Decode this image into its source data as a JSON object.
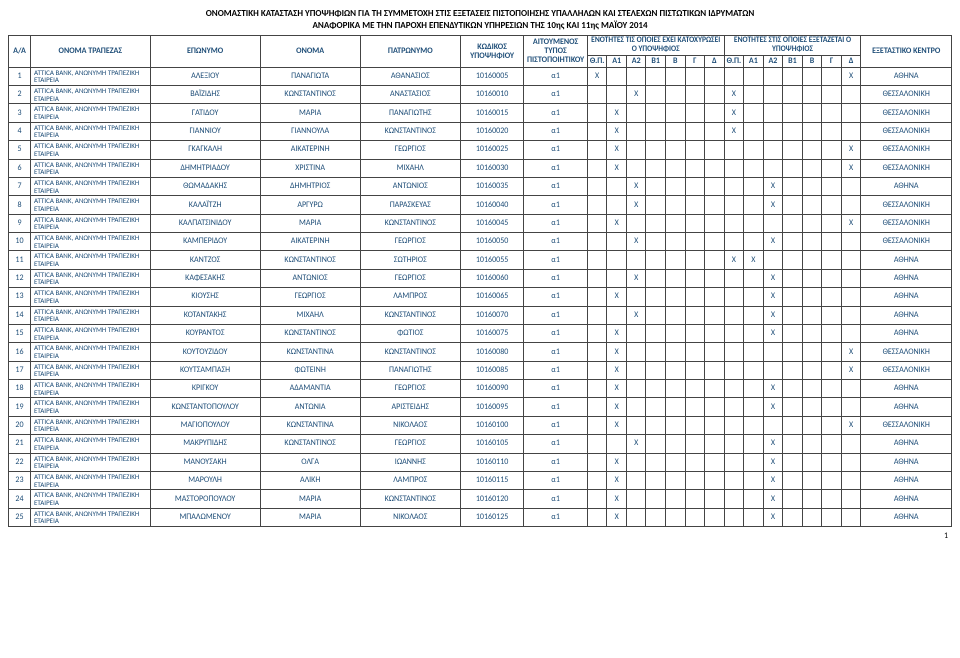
{
  "title": {
    "line1": "ΟΝΟΜΑΣΤΙΚΗ ΚΑΤΑΣΤΑΣΗ ΥΠΟΨΗΦΙΩΝ ΓΙΑ ΤΗ ΣΥΜΜΕΤΟΧΗ ΣΤΙΣ ΕΞΕΤΑΣΕΙΣ ΠΙΣΤΟΠΟΙΗΣΗΣ ΥΠΑΛΛΗΛΩΝ ΚΑΙ ΣΤΕΛΕΧΩΝ ΠΙΣΤΩΤΙΚΩΝ ΙΔΡΥΜΑΤΩΝ",
    "line2": "ΑΝΑΦΟΡΙΚΑ ΜΕ ΤΗΝ ΠΑΡΟΧΗ ΕΠΕΝΔΥΤΙΚΩΝ ΥΠΗΡΕΣΙΩΝ ΤΗΣ 10ης ΚΑΙ 11ης ΜΑΪΟΥ 2014"
  },
  "headers": {
    "aa": "Α/Α",
    "bank": "ΟΝΟΜΑ ΤΡΑΠΕΖΑΣ",
    "eponymo": "ΕΠΩΝΥΜΟ",
    "onoma": "ΟΝΟΜΑ",
    "patronymo": "ΠΑΤΡΩΝΥΜΟ",
    "kodikos": "ΚΩΔΙΚΟΣ ΥΠΟΨΗΦΙΟΥ",
    "typos": "ΑΙΤΟΥΜΕΝΟΣ ΤΥΠΟΣ ΠΙΣΤΟΠΟΙΗΤΙΚΟΥ",
    "group1": "ΕΝΟΤΗΤΕΣ ΤΙΣ ΟΠΟΙΕΣ ΕΧΕΙ ΚΑΤΟΧΥΡΩΣΕΙ Ο ΥΠΟΨΗΦΙΟΣ",
    "group2": "ΕΝΟΤΗΤΕΣ ΣΤΙΣ ΟΠΟΙΕΣ ΕΞΕΤΑΖΕΤΑΙ Ο ΥΠΟΨΗΦΙΟΣ",
    "thp": "Θ.Π.",
    "a1": "Α1",
    "a2": "Α2",
    "b1": "Β1",
    "b": "Β",
    "g": "Γ",
    "d": "Δ",
    "kentro": "ΕΞΕΤΑΣΤΙΚΟ ΚΕΝΤΡΟ"
  },
  "bank_name": "ATTICA BANK, ΑΝΩΝΥΜΗ ΤΡΑΠΕΖΙΚΗ ΕΤΑΙΡΕΙΑ",
  "rows": [
    {
      "n": 1,
      "ep": "ΑΛΕΞΙΟΥ",
      "on": "ΠΑΝΑΓΙΩΤΑ",
      "pa": "ΑΘΑΝΑΣΙΟΣ",
      "k": "10160005",
      "t": "α1",
      "g1": [
        "X",
        "",
        "",
        "",
        "",
        "",
        ""
      ],
      "g2": [
        "",
        "",
        "",
        "",
        "",
        "",
        "X"
      ],
      "c": "ΑΘΗΝΑ"
    },
    {
      "n": 2,
      "ep": "ΒΑΪΖΙΔΗΣ",
      "on": "ΚΩΝΣΤΑΝΤΙΝΟΣ",
      "pa": "ΑΝΑΣΤΑΣΙΟΣ",
      "k": "10160010",
      "t": "α1",
      "g1": [
        "",
        "",
        "X",
        "",
        "",
        "",
        ""
      ],
      "g2": [
        "X",
        "",
        "",
        "",
        "",
        "",
        ""
      ],
      "c": "ΘΕΣΣΑΛΟΝΙΚΗ"
    },
    {
      "n": 3,
      "ep": "ΓΑΤΙΔΟΥ",
      "on": "ΜΑΡΙΑ",
      "pa": "ΠΑΝΑΓΙΩΤΗΣ",
      "k": "10160015",
      "t": "α1",
      "g1": [
        "",
        "X",
        "",
        "",
        "",
        "",
        ""
      ],
      "g2": [
        "X",
        "",
        "",
        "",
        "",
        "",
        ""
      ],
      "c": "ΘΕΣΣΑΛΟΝΙΚΗ"
    },
    {
      "n": 4,
      "ep": "ΓΙΑΝΝΙΟΥ",
      "on": "ΓΙΑΝΝΟΥΛΑ",
      "pa": "ΚΩΝΣΤΑΝΤΙΝΟΣ",
      "k": "10160020",
      "t": "α1",
      "g1": [
        "",
        "X",
        "",
        "",
        "",
        "",
        ""
      ],
      "g2": [
        "X",
        "",
        "",
        "",
        "",
        "",
        ""
      ],
      "c": "ΘΕΣΣΑΛΟΝΙΚΗ"
    },
    {
      "n": 5,
      "ep": "ΓΚΑΓΚΑΛΗ",
      "on": "ΑΙΚΑΤΕΡΙΝΗ",
      "pa": "ΓΕΩΡΓΙΟΣ",
      "k": "10160025",
      "t": "α1",
      "g1": [
        "",
        "X",
        "",
        "",
        "",
        "",
        ""
      ],
      "g2": [
        "",
        "",
        "",
        "",
        "",
        "",
        "X"
      ],
      "c": "ΘΕΣΣΑΛΟΝΙΚΗ"
    },
    {
      "n": 6,
      "ep": "ΔΗΜΗΤΡΙΑΔΟΥ",
      "on": "ΧΡΙΣΤΙΝΑ",
      "pa": "ΜΙΧΑΗΛ",
      "k": "10160030",
      "t": "α1",
      "g1": [
        "",
        "X",
        "",
        "",
        "",
        "",
        ""
      ],
      "g2": [
        "",
        "",
        "",
        "",
        "",
        "",
        "X"
      ],
      "c": "ΘΕΣΣΑΛΟΝΙΚΗ"
    },
    {
      "n": 7,
      "ep": "ΘΩΜΑΔΑΚΗΣ",
      "on": "ΔΗΜΗΤΡΙΟΣ",
      "pa": "ΑΝΤΩΝΙΟΣ",
      "k": "10160035",
      "t": "α1",
      "g1": [
        "",
        "",
        "X",
        "",
        "",
        "",
        ""
      ],
      "g2": [
        "",
        "",
        "X",
        "",
        "",
        "",
        ""
      ],
      "c": "ΑΘΗΝΑ"
    },
    {
      "n": 8,
      "ep": "ΚΑΛΑΪΤΖΗ",
      "on": "ΑΡΓΥΡΩ",
      "pa": "ΠΑΡΑΣΚΕΥΑΣ",
      "k": "10160040",
      "t": "α1",
      "g1": [
        "",
        "",
        "X",
        "",
        "",
        "",
        ""
      ],
      "g2": [
        "",
        "",
        "X",
        "",
        "",
        "",
        ""
      ],
      "c": "ΘΕΣΣΑΛΟΝΙΚΗ"
    },
    {
      "n": 9,
      "ep": "ΚΑΛΠΑΤΣΙΝΙΔΟΥ",
      "on": "ΜΑΡΙΑ",
      "pa": "ΚΩΝΣΤΑΝΤΙΝΟΣ",
      "k": "10160045",
      "t": "α1",
      "g1": [
        "",
        "X",
        "",
        "",
        "",
        "",
        ""
      ],
      "g2": [
        "",
        "",
        "",
        "",
        "",
        "",
        "X"
      ],
      "c": "ΘΕΣΣΑΛΟΝΙΚΗ"
    },
    {
      "n": 10,
      "ep": "ΚΑΜΠΕΡΙΔΟΥ",
      "on": "ΑΙΚΑΤΕΡΙΝΗ",
      "pa": "ΓΕΩΡΓΙΟΣ",
      "k": "10160050",
      "t": "α1",
      "g1": [
        "",
        "",
        "X",
        "",
        "",
        "",
        ""
      ],
      "g2": [
        "",
        "",
        "X",
        "",
        "",
        "",
        ""
      ],
      "c": "ΘΕΣΣΑΛΟΝΙΚΗ"
    },
    {
      "n": 11,
      "ep": "ΚΑΝΤΖΟΣ",
      "on": "ΚΩΝΣΤΑΝΤΙΝΟΣ",
      "pa": "ΣΩΤΗΡΙΟΣ",
      "k": "10160055",
      "t": "α1",
      "g1": [
        "",
        "",
        "",
        "",
        "",
        "",
        ""
      ],
      "g2": [
        "X",
        "X",
        "",
        "",
        "",
        "",
        ""
      ],
      "c": "ΑΘΗΝΑ"
    },
    {
      "n": 12,
      "ep": "ΚΑΦΕΣΑΚΗΣ",
      "on": "ΑΝΤΩΝΙΟΣ",
      "pa": "ΓΕΩΡΓΙΟΣ",
      "k": "10160060",
      "t": "α1",
      "g1": [
        "",
        "",
        "X",
        "",
        "",
        "",
        ""
      ],
      "g2": [
        "",
        "",
        "X",
        "",
        "",
        "",
        ""
      ],
      "c": "ΑΘΗΝΑ"
    },
    {
      "n": 13,
      "ep": "ΚΙΟΥΣΗΣ",
      "on": "ΓΕΩΡΓΙΟΣ",
      "pa": "ΛΑΜΠΡΟΣ",
      "k": "10160065",
      "t": "α1",
      "g1": [
        "",
        "X",
        "",
        "",
        "",
        "",
        ""
      ],
      "g2": [
        "",
        "",
        "X",
        "",
        "",
        "",
        ""
      ],
      "c": "ΑΘΗΝΑ"
    },
    {
      "n": 14,
      "ep": "ΚΟΤΑΝΤΑΚΗΣ",
      "on": "ΜΙΧΑΗΛ",
      "pa": "ΚΩΝΣΤΑΝΤΙΝΟΣ",
      "k": "10160070",
      "t": "α1",
      "g1": [
        "",
        "",
        "X",
        "",
        "",
        "",
        ""
      ],
      "g2": [
        "",
        "",
        "X",
        "",
        "",
        "",
        ""
      ],
      "c": "ΑΘΗΝΑ"
    },
    {
      "n": 15,
      "ep": "ΚΟΥΡΑΝΤΟΣ",
      "on": "ΚΩΝΣΤΑΝΤΙΝΟΣ",
      "pa": "ΦΩΤΙΟΣ",
      "k": "10160075",
      "t": "α1",
      "g1": [
        "",
        "X",
        "",
        "",
        "",
        "",
        ""
      ],
      "g2": [
        "",
        "",
        "X",
        "",
        "",
        "",
        ""
      ],
      "c": "ΑΘΗΝΑ"
    },
    {
      "n": 16,
      "ep": "ΚΟΥΤΟΥΖΙΔΟΥ",
      "on": "ΚΩΝΣΤΑΝΤΙΝΑ",
      "pa": "ΚΩΝΣΤΑΝΤΙΝΟΣ",
      "k": "10160080",
      "t": "α1",
      "g1": [
        "",
        "X",
        "",
        "",
        "",
        "",
        ""
      ],
      "g2": [
        "",
        "",
        "",
        "",
        "",
        "",
        "X"
      ],
      "c": "ΘΕΣΣΑΛΟΝΙΚΗ"
    },
    {
      "n": 17,
      "ep": "ΚΟΥΤΣΑΜΠΑΣΗ",
      "on": "ΦΩΤΕΙΝΗ",
      "pa": "ΠΑΝΑΓΙΩΤΗΣ",
      "k": "10160085",
      "t": "α1",
      "g1": [
        "",
        "X",
        "",
        "",
        "",
        "",
        ""
      ],
      "g2": [
        "",
        "",
        "",
        "",
        "",
        "",
        "X"
      ],
      "c": "ΘΕΣΣΑΛΟΝΙΚΗ"
    },
    {
      "n": 18,
      "ep": "ΚΡΙΓΚΟΥ",
      "on": "ΑΔΑΜΑΝΤΙΑ",
      "pa": "ΓΕΩΡΓΙΟΣ",
      "k": "10160090",
      "t": "α1",
      "g1": [
        "",
        "X",
        "",
        "",
        "",
        "",
        ""
      ],
      "g2": [
        "",
        "",
        "X",
        "",
        "",
        "",
        ""
      ],
      "c": "ΑΘΗΝΑ"
    },
    {
      "n": 19,
      "ep": "ΚΩΝΣΤΑΝΤΟΠΟΥΛΟΥ",
      "on": "ΑΝΤΩΝΙΑ",
      "pa": "ΑΡΙΣΤΕΙΔΗΣ",
      "k": "10160095",
      "t": "α1",
      "g1": [
        "",
        "X",
        "",
        "",
        "",
        "",
        ""
      ],
      "g2": [
        "",
        "",
        "X",
        "",
        "",
        "",
        ""
      ],
      "c": "ΑΘΗΝΑ"
    },
    {
      "n": 20,
      "ep": "ΜΑΓΙΟΠΟΥΛΟΥ",
      "on": "ΚΩΝΣΤΑΝΤΙΝΑ",
      "pa": "ΝΙΚΟΛΑΟΣ",
      "k": "10160100",
      "t": "α1",
      "g1": [
        "",
        "X",
        "",
        "",
        "",
        "",
        ""
      ],
      "g2": [
        "",
        "",
        "",
        "",
        "",
        "",
        "X"
      ],
      "c": "ΘΕΣΣΑΛΟΝΙΚΗ"
    },
    {
      "n": 21,
      "ep": "ΜΑΚΡΥΠΙΔΗΣ",
      "on": "ΚΩΝΣΤΑΝΤΙΝΟΣ",
      "pa": "ΓΕΩΡΓΙΟΣ",
      "k": "10160105",
      "t": "α1",
      "g1": [
        "",
        "",
        "X",
        "",
        "",
        "",
        ""
      ],
      "g2": [
        "",
        "",
        "X",
        "",
        "",
        "",
        ""
      ],
      "c": "ΑΘΗΝΑ"
    },
    {
      "n": 22,
      "ep": "ΜΑΝΟΥΣΑΚΗ",
      "on": "ΟΛΓΑ",
      "pa": "ΙΩΑΝΝΗΣ",
      "k": "10160110",
      "t": "α1",
      "g1": [
        "",
        "X",
        "",
        "",
        "",
        "",
        ""
      ],
      "g2": [
        "",
        "",
        "X",
        "",
        "",
        "",
        ""
      ],
      "c": "ΑΘΗΝΑ"
    },
    {
      "n": 23,
      "ep": "ΜΑΡΟΥΛΗ",
      "on": "ΑΛΙΚΗ",
      "pa": "ΛΑΜΠΡΟΣ",
      "k": "10160115",
      "t": "α1",
      "g1": [
        "",
        "X",
        "",
        "",
        "",
        "",
        ""
      ],
      "g2": [
        "",
        "",
        "X",
        "",
        "",
        "",
        ""
      ],
      "c": "ΑΘΗΝΑ"
    },
    {
      "n": 24,
      "ep": "ΜΑΣΤΟΡΟΠΟΥΛΟΥ",
      "on": "ΜΑΡΙΑ",
      "pa": "ΚΩΝΣΤΑΝΤΙΝΟΣ",
      "k": "10160120",
      "t": "α1",
      "g1": [
        "",
        "X",
        "",
        "",
        "",
        "",
        ""
      ],
      "g2": [
        "",
        "",
        "X",
        "",
        "",
        "",
        ""
      ],
      "c": "ΑΘΗΝΑ"
    },
    {
      "n": 25,
      "ep": "ΜΠΑΛΩΜΕΝΟΥ",
      "on": "ΜΑΡΙΑ",
      "pa": "ΝΙΚΟΛΑΟΣ",
      "k": "10160125",
      "t": "α1",
      "g1": [
        "",
        "X",
        "",
        "",
        "",
        "",
        ""
      ],
      "g2": [
        "",
        "",
        "X",
        "",
        "",
        "",
        ""
      ],
      "c": "ΑΘΗΝΑ"
    }
  ],
  "page_number": "1",
  "style": {
    "text_color": "#1f4e78",
    "border_color": "#444444",
    "background": "#ffffff"
  }
}
